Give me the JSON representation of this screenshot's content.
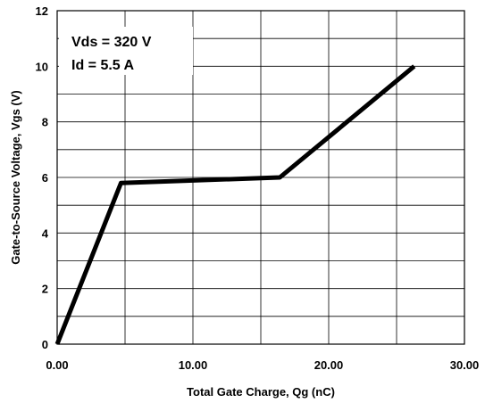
{
  "chart_data": {
    "type": "line",
    "xlabel": "Total Gate Charge, Qg (nC)",
    "ylabel": "Gate-to-Source Voltage, Vgs (V)",
    "xlim": [
      0,
      30
    ],
    "ylim": [
      0,
      12
    ],
    "x_ticks": [
      "0.00",
      "10.00",
      "20.00",
      "30.00"
    ],
    "y_ticks": [
      "0",
      "2",
      "4",
      "6",
      "8",
      "10",
      "12"
    ],
    "annotations": [
      "Vds = 320 V",
      "Id =  5.5 A"
    ],
    "grid": true,
    "series": [
      {
        "x": [
          0.0,
          4.7,
          16.4,
          26.3
        ],
        "y": [
          0.0,
          5.8,
          6.0,
          10.0
        ],
        "color": "#000000"
      }
    ]
  }
}
